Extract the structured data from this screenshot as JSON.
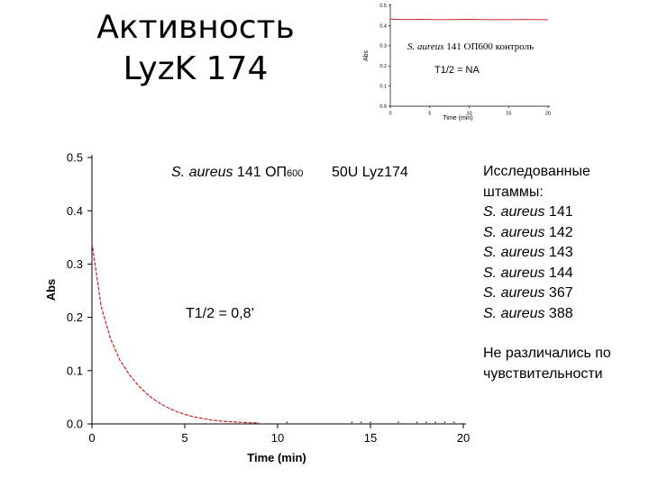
{
  "slide": {
    "title_line1": "Активность",
    "title_line2": "LyzK 174"
  },
  "strains_panel": {
    "heading_line1": "Исследованные",
    "heading_line2": "штаммы:",
    "strains": [
      {
        "species": "S. aureus",
        "number": "141"
      },
      {
        "species": "S. aureus",
        "number": "142"
      },
      {
        "species": "S. aureus",
        "number": "143"
      },
      {
        "species": "S. aureus",
        "number": "144"
      },
      {
        "species": "S. aureus",
        "number": "367"
      },
      {
        "species": "S. aureus",
        "number": "388"
      }
    ],
    "note_line1": "Не различались по",
    "note_line2": "чувствительности"
  },
  "colors": {
    "curve": "#cc2222",
    "axis": "#000000"
  },
  "chart_data": [
    {
      "type": "line",
      "panel": "inset",
      "title_species": "S. aureus",
      "title_rest": " 141 ОП600 контроль",
      "annotation": "T1/2 = NA",
      "xlabel": "Time (min)",
      "ylabel": "Abs",
      "xlim": [
        0,
        20
      ],
      "ylim": [
        0,
        0.5
      ],
      "xticks": [
        "0",
        "5",
        "10",
        "15",
        "20"
      ],
      "yticks": [
        "0.0",
        "0.1",
        "0.2",
        "0.3",
        "0.4",
        "0.5"
      ],
      "series": [
        {
          "x": [
            0,
            2,
            4,
            6,
            8,
            10,
            12,
            14,
            16,
            18,
            20
          ],
          "y": [
            0.432,
            0.43,
            0.431,
            0.429,
            0.43,
            0.431,
            0.43,
            0.429,
            0.43,
            0.43,
            0.429
          ]
        }
      ]
    },
    {
      "type": "line",
      "panel": "main",
      "title_species": "S. aureus",
      "title_rest": " 141 ОП",
      "title_sub": "600",
      "title_extra": "50U Lyz174",
      "annotation": "T1/2 = 0,8’",
      "xlabel": "Time (min)",
      "ylabel": "Abs",
      "xlim": [
        0,
        20
      ],
      "ylim": [
        0,
        0.5
      ],
      "xticks": [
        "0",
        "5",
        "10",
        "15",
        "20"
      ],
      "yticks": [
        "0.0",
        "0.1",
        "0.2",
        "0.3",
        "0.4",
        "0.5"
      ],
      "series": [
        {
          "x": [
            0,
            0.5,
            1,
            1.5,
            2,
            2.5,
            3,
            3.5,
            4,
            4.5,
            5,
            5.5,
            6,
            6.5,
            7,
            7.5,
            8,
            8.5,
            9
          ],
          "y": [
            0.34,
            0.22,
            0.16,
            0.12,
            0.093,
            0.072,
            0.055,
            0.042,
            0.032,
            0.024,
            0.018,
            0.013,
            0.01,
            0.007,
            0.005,
            0.004,
            0.003,
            0.002,
            0.002
          ]
        }
      ],
      "scatter_points": {
        "x": [
          10.5,
          14,
          14.5,
          15,
          16.5,
          17.5,
          18,
          18.5,
          19,
          19.5
        ],
        "y": [
          0.003,
          0.003,
          0.003,
          0.003,
          0.003,
          0.003,
          0.003,
          0.003,
          0.003,
          0.003
        ]
      }
    }
  ]
}
